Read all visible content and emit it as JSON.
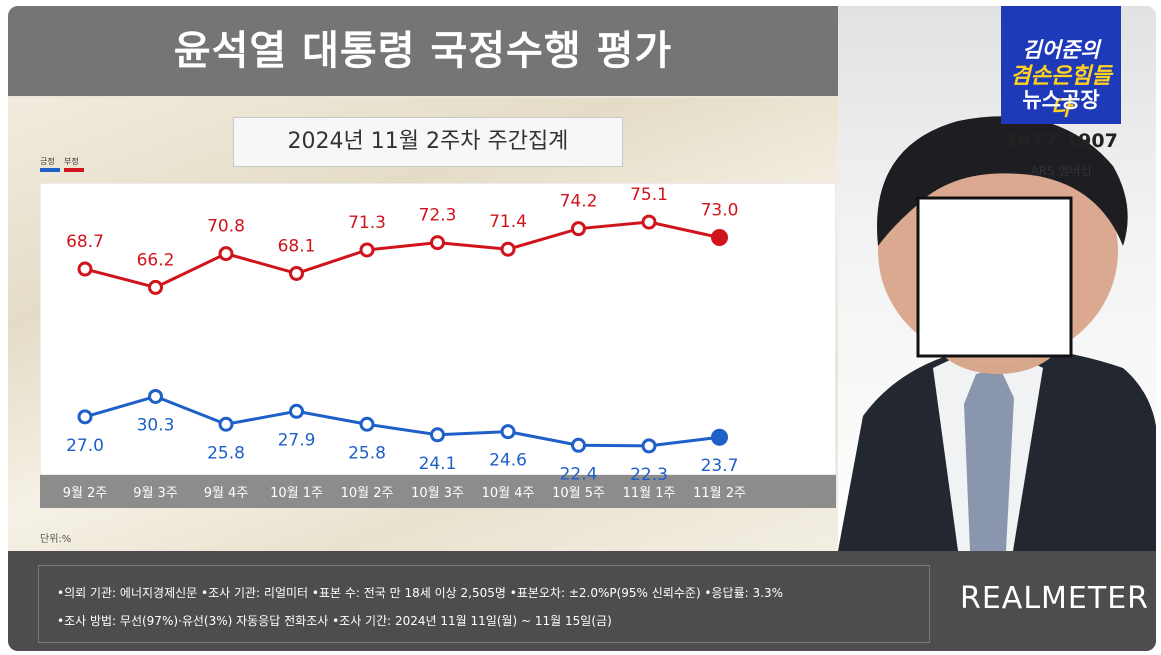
{
  "title": "윤석열 대통령 국정수행 평가",
  "subtitle": "2024년 11월 2주차 주간집계",
  "legend": {
    "positive": "긍정",
    "negative": "부정"
  },
  "unit_label": "단위:%",
  "logo": {
    "line1": "김어준의",
    "line2": "겸손은힘들다",
    "line3": "뉴스공장"
  },
  "phone": "1877-1907",
  "phone_sub": "ARS 멤버십",
  "footer": {
    "line1": "•의뢰 기관: 에너지경제신문 •조사 기관: 리얼미터 •표본 수: 전국 만 18세 이상 2,505명 •표본오차: ±2.0%P(95% 신뢰수준) •응답률: 3.3%",
    "line2": "•조사 방법: 무선(97%)·유선(3%) 자동응답 전화조사 •조사 기간: 2024년 11월 11일(월) ~ 11월 15일(금)",
    "brand": "REALMETER"
  },
  "colors": {
    "positive": "#1f5fc8",
    "negative": "#d0141c",
    "axis_band": "#8c8c8c"
  },
  "chart_data": {
    "type": "line",
    "categories": [
      "9월 2주",
      "9월 3주",
      "9월 4주",
      "10월 1주",
      "10월 2주",
      "10월 3주",
      "10월 4주",
      "10월 5주",
      "11월 1주",
      "11월 2주"
    ],
    "series": [
      {
        "name": "부정",
        "values": [
          68.7,
          66.2,
          70.8,
          68.1,
          71.3,
          72.3,
          71.4,
          74.2,
          75.1,
          73.0
        ]
      },
      {
        "name": "긍정",
        "values": [
          27.0,
          30.3,
          25.8,
          27.9,
          25.8,
          24.1,
          24.6,
          22.4,
          22.3,
          23.7
        ]
      }
    ]
  }
}
